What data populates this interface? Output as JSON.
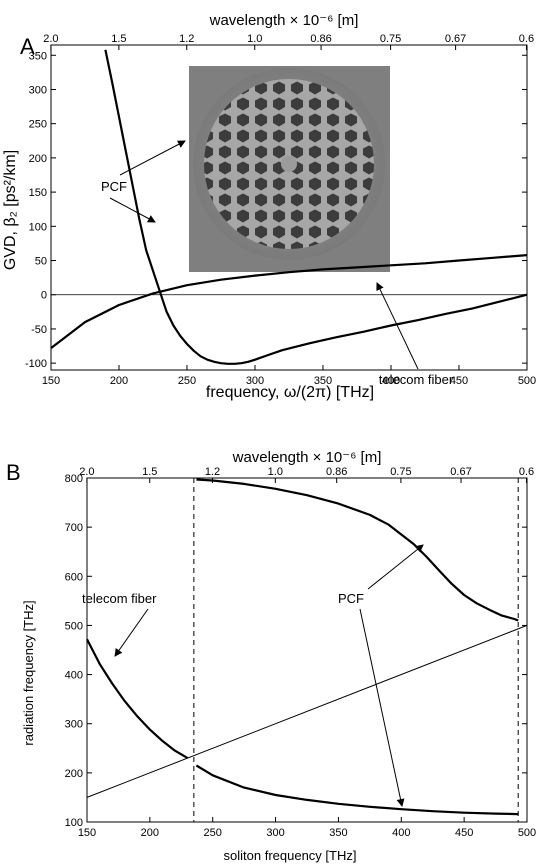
{
  "chart_data": [
    {
      "panel_label": "A",
      "type": "line",
      "xlabel": "frequency, ω/(2π)   [THz]",
      "ylabel": "GVD, β₂ [ps²/km]",
      "top_axis_label": "wavelength × 10⁻⁶ [m]",
      "xlim": [
        150,
        500
      ],
      "ylim": [
        -110,
        365
      ],
      "x_ticks": [
        150,
        200,
        250,
        300,
        350,
        400,
        450,
        500
      ],
      "y_ticks": [
        -100,
        -50,
        0,
        50,
        100,
        150,
        200,
        250,
        300,
        350
      ],
      "top_ticks": [
        {
          "label": "2.0",
          "value": 149.9
        },
        {
          "label": "1.5",
          "value": 199.9
        },
        {
          "label": "1.2",
          "value": 249.8
        },
        {
          "label": "1.0",
          "value": 299.8
        },
        {
          "label": "0.86",
          "value": 348.6
        },
        {
          "label": "0.75",
          "value": 399.7
        },
        {
          "label": "0.67",
          "value": 447.5
        },
        {
          "label": "0.6",
          "value": 499.6
        }
      ],
      "grid": false,
      "zero_line": true,
      "series": [
        {
          "name": "PCF",
          "x": [
            190,
            195,
            200,
            205,
            210,
            215,
            220,
            225,
            230,
            235,
            240,
            245,
            250,
            255,
            260,
            265,
            270,
            275,
            280,
            285,
            290,
            295,
            300,
            310,
            320,
            340,
            360,
            380,
            400,
            420,
            440,
            460,
            480,
            490,
            500
          ],
          "y": [
            358,
            310,
            260,
            210,
            160,
            110,
            65,
            35,
            5,
            -25,
            -45,
            -60,
            -72,
            -82,
            -90,
            -95,
            -98,
            -100,
            -101,
            -101,
            -100,
            -98,
            -95,
            -88,
            -81,
            -71,
            -62,
            -54,
            -45,
            -37,
            -28,
            -20,
            -10,
            -5,
            0
          ]
        },
        {
          "name": "telecom fiber",
          "x": [
            150,
            175,
            200,
            225,
            250,
            275,
            300,
            325,
            350,
            375,
            400,
            425,
            450,
            475,
            500
          ],
          "y": [
            -78,
            -40,
            -15,
            2,
            14,
            22,
            28,
            33,
            37,
            40,
            43,
            46,
            50,
            54,
            58
          ]
        }
      ],
      "annotations": [
        "PCF",
        "telecom fiber"
      ]
    },
    {
      "panel_label": "B",
      "type": "line",
      "xlabel": "soliton frequency [THz]",
      "ylabel": "radiation frequency  [THz]",
      "top_axis_label": "wavelength × 10⁻⁶ [m]",
      "xlim": [
        150,
        500
      ],
      "ylim": [
        100,
        800
      ],
      "x_ticks": [
        150,
        200,
        250,
        300,
        350,
        400,
        450,
        500
      ],
      "y_ticks": [
        100,
        200,
        300,
        400,
        500,
        600,
        700,
        800
      ],
      "top_ticks": [
        {
          "label": "2.0",
          "value": 149.9
        },
        {
          "label": "1.5",
          "value": 199.9
        },
        {
          "label": "1.2",
          "value": 249.8
        },
        {
          "label": "1.0",
          "value": 299.8
        },
        {
          "label": "0.86",
          "value": 348.6
        },
        {
          "label": "0.75",
          "value": 399.7
        },
        {
          "label": "0.67",
          "value": 447.5
        },
        {
          "label": "0.6",
          "value": 499.6
        }
      ],
      "grid": false,
      "vertical_dashed_lines": [
        235,
        493
      ],
      "series": [
        {
          "name": "telecom fiber",
          "x": [
            150,
            160,
            170,
            180,
            190,
            200,
            210,
            220,
            230
          ],
          "y": [
            472,
            422,
            382,
            346,
            315,
            288,
            265,
            245,
            230
          ]
        },
        {
          "name": "PCF upper branch",
          "x": [
            237,
            250,
            275,
            300,
            325,
            350,
            375,
            390,
            400,
            410,
            420,
            430,
            440,
            450,
            460,
            470,
            480,
            490,
            493
          ],
          "y": [
            797,
            795,
            788,
            778,
            765,
            748,
            725,
            705,
            685,
            665,
            640,
            612,
            585,
            562,
            545,
            532,
            520,
            513,
            510
          ]
        },
        {
          "name": "PCF lower branch",
          "x": [
            237,
            250,
            275,
            300,
            325,
            350,
            375,
            400,
            425,
            450,
            475,
            493
          ],
          "y": [
            215,
            195,
            170,
            155,
            145,
            137,
            131,
            126,
            122,
            119,
            117,
            116
          ]
        },
        {
          "name": "identity line",
          "x": [
            150,
            500
          ],
          "y": [
            150,
            500
          ]
        }
      ],
      "annotations": [
        "telecom fiber",
        "PCF"
      ]
    }
  ]
}
